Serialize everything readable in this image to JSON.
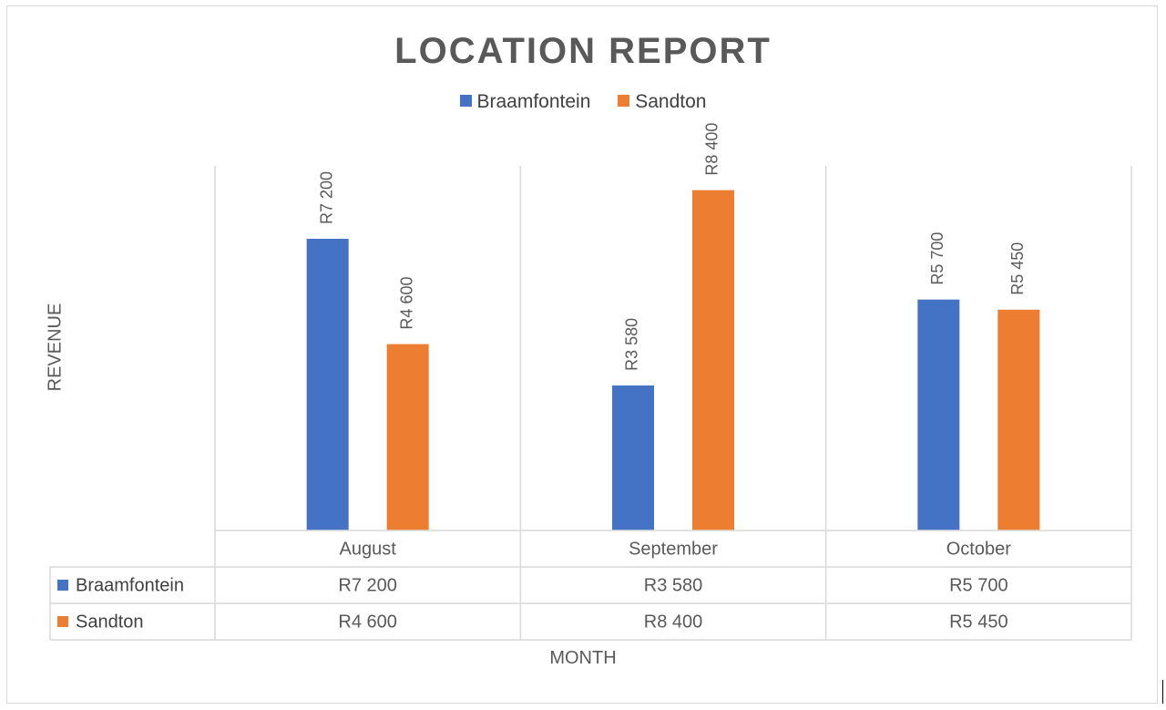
{
  "chart_data": {
    "type": "bar",
    "title": "LOCATION REPORT",
    "xlabel": "MONTH",
    "ylabel": "REVENUE",
    "categories": [
      "August",
      "September",
      "October"
    ],
    "series": [
      {
        "name": "Braamfontein",
        "color": "#4472c4",
        "values": [
          7200,
          3580,
          5700
        ],
        "labels": [
          "R7 200",
          "R3 580",
          "R5 700"
        ]
      },
      {
        "name": "Sandton",
        "color": "#ed7d31",
        "values": [
          4600,
          8400,
          5450
        ],
        "labels": [
          "R4 600",
          "R8 400",
          "R5 450"
        ]
      }
    ],
    "ylim": [
      0,
      9000
    ],
    "legend_position": "top",
    "data_table": true,
    "grid": false
  }
}
